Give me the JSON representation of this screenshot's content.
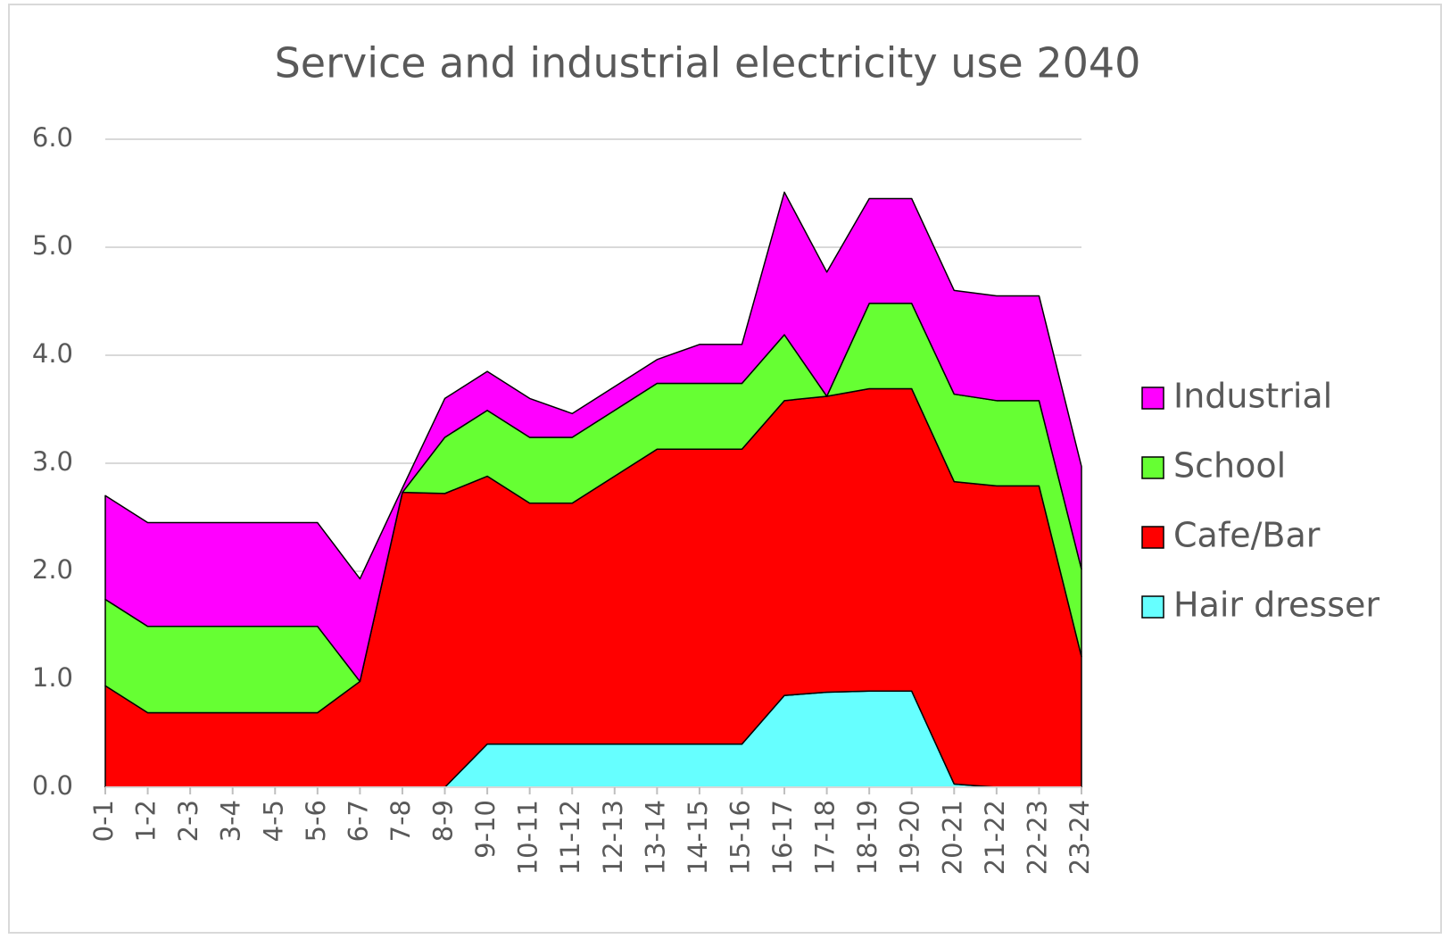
{
  "chart_data": {
    "type": "stacked_area",
    "title": "Service and industrial electricity use 2040",
    "categories": [
      "0-1",
      "1-2",
      "2-3",
      "3-4",
      "4-5",
      "5-6",
      "6-7",
      "7-8",
      "8-9",
      "9-10",
      "10-11",
      "11-12",
      "12-13",
      "13-14",
      "14-15",
      "15-16",
      "16-17",
      "17-18",
      "18-19",
      "19-20",
      "20-21",
      "21-22",
      "22-23",
      "23-24"
    ],
    "series": [
      {
        "name": "Hair dresser",
        "color": "#66ffff",
        "values": [
          0,
          0,
          0,
          0,
          0,
          0,
          0,
          0,
          0,
          0.4,
          0.4,
          0.4,
          0.4,
          0.4,
          0.4,
          0.4,
          0.85,
          0.88,
          0.89,
          0.89,
          0.03,
          0,
          0,
          0
        ]
      },
      {
        "name": "Cafe/Bar",
        "color": "#ff0000",
        "values": [
          0.94,
          0.69,
          0.69,
          0.69,
          0.69,
          0.69,
          0.98,
          2.73,
          2.72,
          2.48,
          2.23,
          2.23,
          2.48,
          2.73,
          2.73,
          2.73,
          2.73,
          2.74,
          2.8,
          2.8,
          2.8,
          2.79,
          2.79,
          1.21
        ]
      },
      {
        "name": "School",
        "color": "#66ff33",
        "values": [
          0.8,
          0.8,
          0.8,
          0.8,
          0.8,
          0.8,
          0,
          0,
          0.52,
          0.61,
          0.61,
          0.61,
          0.61,
          0.61,
          0.61,
          0.61,
          0.61,
          0,
          0.79,
          0.79,
          0.81,
          0.79,
          0.79,
          0.81
        ]
      },
      {
        "name": "Industrial",
        "color": "#ff00ff",
        "values": [
          0.96,
          0.96,
          0.96,
          0.96,
          0.96,
          0.96,
          0.95,
          0.04,
          0.36,
          0.36,
          0.36,
          0.22,
          0.22,
          0.22,
          0.36,
          0.36,
          1.32,
          1.15,
          0.97,
          0.97,
          0.96,
          0.97,
          0.97,
          0.95
        ]
      }
    ],
    "ylim": [
      0,
      6
    ],
    "yticks": [
      {
        "value": 0,
        "label": "0.0"
      },
      {
        "value": 1,
        "label": "1.0"
      },
      {
        "value": 2,
        "label": "2.0"
      },
      {
        "value": 3,
        "label": "3.0"
      },
      {
        "value": 4,
        "label": "4.0"
      },
      {
        "value": 5,
        "label": "5.0"
      },
      {
        "value": 6,
        "label": "6.0"
      }
    ],
    "grid": true,
    "legend": "right"
  }
}
